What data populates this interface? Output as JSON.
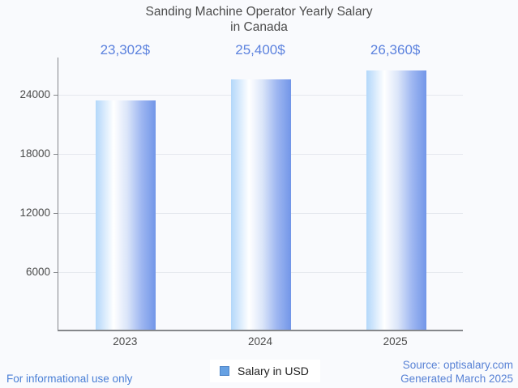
{
  "chart": {
    "title_lines": [
      "Sanding Machine Operator Yearly Salary",
      "in Canada"
    ]
  },
  "chart_data": {
    "type": "bar",
    "title": "Sanding Machine Operator Yearly Salary in Canada",
    "categories": [
      "2023",
      "2024",
      "2025"
    ],
    "series": [
      {
        "name": "Salary in USD",
        "values": [
          23302,
          25400,
          26360
        ]
      }
    ],
    "value_labels": [
      "23,302$",
      "25,400$",
      "26,360$"
    ],
    "xlabel": "",
    "ylabel": "",
    "yticks": [
      6000,
      12000,
      18000,
      24000
    ],
    "ylim": [
      0,
      27800
    ],
    "grid": true,
    "legend_position": "bottom"
  },
  "legend": {
    "label": "Salary in USD"
  },
  "footer": {
    "left": "For informational use only",
    "source": "Source: optisalary.com",
    "generated": "Generated March 2025"
  },
  "colors": {
    "background": "#f9fafd",
    "value_label": "#5c82de",
    "axis": "#85878b",
    "gridline": "#e5e8ee",
    "text": "#4b4b4b",
    "footer_blue": "#4a7fd6",
    "legend_swatch_fill": "#66a1e3",
    "legend_swatch_border": "#4d85c8",
    "bar_gradient": [
      "#b3d7fa",
      "#ffffff",
      "#dce6f9",
      "#9fb7f1",
      "#7296e8"
    ]
  }
}
